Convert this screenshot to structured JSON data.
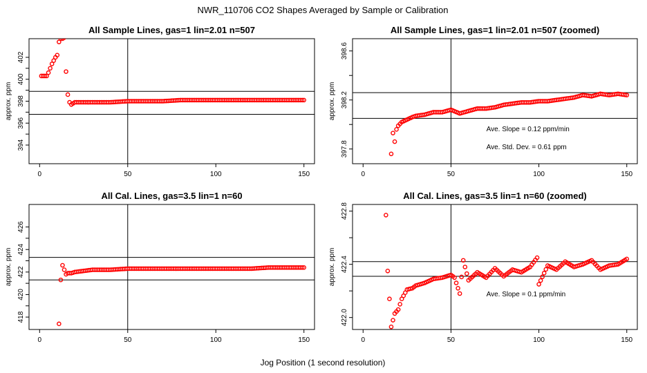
{
  "figure": {
    "title": "NWR_110706  CO2 Shapes Averaged by Sample or Calibration",
    "xlabel": "Jog Position (1 second resolution)"
  },
  "chart_data": [
    {
      "type": "scatter",
      "title": "All Sample Lines, gas=1 lin=2.01 n=507",
      "ylabel": "approx. ppm",
      "xlim": [
        -6,
        156
      ],
      "ylim": [
        392.3,
        403.7
      ],
      "xticks": [
        "0",
        "50",
        "100",
        "150"
      ],
      "yticks": [
        "394",
        "396",
        "398",
        "400",
        "402"
      ],
      "vline": 50,
      "hlines": [
        396.8,
        398.9
      ],
      "annotations": [],
      "series": [
        {
          "color": "#ff0000",
          "x": [
            1,
            2,
            3,
            4,
            5,
            6,
            7,
            8,
            9,
            10,
            11,
            12,
            13,
            14,
            15,
            16,
            17,
            18,
            19,
            20,
            25,
            30,
            40,
            50,
            60,
            70,
            80,
            90,
            100,
            110,
            120,
            130,
            140,
            150
          ],
          "y": [
            400.3,
            400.3,
            400.3,
            400.3,
            400.6,
            401.0,
            401.4,
            401.7,
            402.0,
            402.2,
            403.4,
            403.7,
            403.7,
            403.8,
            400.7,
            398.6,
            397.9,
            397.7,
            397.8,
            397.9,
            397.9,
            397.9,
            397.9,
            398.0,
            398.0,
            398.0,
            398.1,
            398.1,
            398.1,
            398.1,
            398.1,
            398.1,
            398.1,
            398.1
          ]
        }
      ]
    },
    {
      "type": "scatter",
      "title": "All Sample Lines, gas=1 lin=2.01 n=507 (zoomed)",
      "ylabel": "approx. ppm",
      "xlim": [
        -6,
        156
      ],
      "ylim": [
        397.68,
        398.7
      ],
      "xticks": [
        "0",
        "50",
        "100",
        "150"
      ],
      "yticks": [
        "397.8",
        "398.2",
        "398.6"
      ],
      "vline": 50,
      "hlines": [
        398.26,
        398.05
      ],
      "annotations": [
        "Ave. Slope =  0.12  ppm/min",
        "Ave. Std. Dev. =  0.61  ppm"
      ],
      "series": [
        {
          "color": "#ff0000",
          "x": [
            16,
            17,
            18,
            19,
            20,
            22,
            25,
            28,
            30,
            35,
            40,
            45,
            50,
            55,
            60,
            65,
            70,
            75,
            80,
            85,
            90,
            95,
            100,
            105,
            110,
            115,
            120,
            125,
            130,
            135,
            140,
            145,
            150
          ],
          "y": [
            397.76,
            397.93,
            397.86,
            397.96,
            397.99,
            398.02,
            398.04,
            398.06,
            398.07,
            398.08,
            398.1,
            398.1,
            398.12,
            398.09,
            398.11,
            398.13,
            398.13,
            398.14,
            398.16,
            398.17,
            398.18,
            398.18,
            398.19,
            398.19,
            398.2,
            398.21,
            398.22,
            398.24,
            398.23,
            398.25,
            398.24,
            398.25,
            398.24
          ]
        }
      ]
    },
    {
      "type": "scatter",
      "title": "All Cal. Lines, gas=3.5 lin=1 n=60",
      "ylabel": "approx. ppm",
      "xlim": [
        -6,
        156
      ],
      "ylim": [
        416.9,
        428.0
      ],
      "xticks": [
        "0",
        "50",
        "100",
        "150"
      ],
      "yticks": [
        "418",
        "420",
        "422",
        "424",
        "426"
      ],
      "vline": 50,
      "hlines": [
        423.3,
        421.3
      ],
      "annotations": [],
      "series": [
        {
          "color": "#ff0000",
          "x": [
            11,
            12,
            13,
            14,
            15,
            16,
            18,
            20,
            25,
            30,
            40,
            50,
            60,
            70,
            80,
            90,
            100,
            110,
            120,
            130,
            140,
            150
          ],
          "y": [
            417.4,
            421.3,
            422.6,
            422.2,
            421.8,
            421.9,
            421.9,
            422.0,
            422.1,
            422.2,
            422.2,
            422.3,
            422.3,
            422.3,
            422.3,
            422.3,
            422.3,
            422.3,
            422.3,
            422.4,
            422.4,
            422.4
          ]
        }
      ]
    },
    {
      "type": "scatter",
      "title": "All Cal. Lines, gas=3.5 lin=1 n=60 (zoomed)",
      "ylabel": "approx. ppm",
      "xlim": [
        -6,
        156
      ],
      "ylim": [
        421.91,
        422.85
      ],
      "xticks": [
        "0",
        "50",
        "100",
        "150"
      ],
      "yticks": [
        "422.0",
        "422.4",
        "422.8"
      ],
      "vline": 50,
      "hlines": [
        422.42,
        422.31
      ],
      "annotations": [
        "Ave. Slope =  0.1  ppm/min"
      ],
      "series": [
        {
          "color": "#ff0000",
          "x": [
            13,
            14,
            16,
            18,
            20,
            22,
            25,
            28,
            30,
            35,
            40,
            45,
            50,
            52,
            55,
            57,
            60,
            65,
            70,
            75,
            80,
            85,
            90,
            95,
            99,
            100,
            105,
            110,
            115,
            120,
            125,
            130,
            135,
            140,
            145,
            150
          ],
          "y": [
            422.77,
            422.35,
            421.93,
            422.03,
            422.06,
            422.14,
            422.21,
            422.22,
            422.24,
            422.26,
            422.29,
            422.3,
            422.32,
            422.3,
            422.18,
            422.43,
            422.28,
            422.34,
            422.3,
            422.37,
            422.31,
            422.36,
            422.34,
            422.38,
            422.45,
            422.25,
            422.39,
            422.36,
            422.42,
            422.38,
            422.4,
            422.43,
            422.36,
            422.39,
            422.4,
            422.44
          ]
        }
      ]
    }
  ]
}
